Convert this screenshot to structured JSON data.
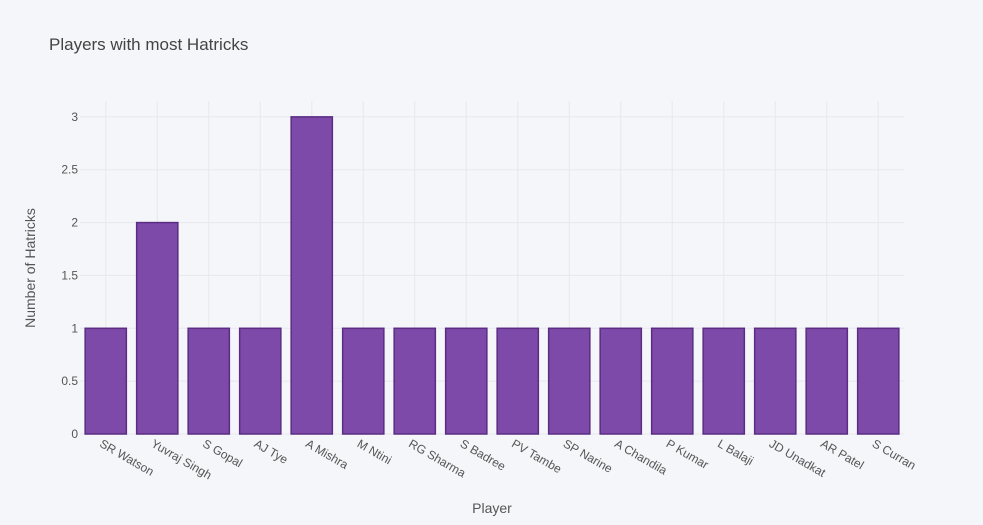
{
  "chart_data": {
    "type": "bar",
    "title": "Players with most Hatricks",
    "xlabel": "Player",
    "ylabel": "Number of Hatricks",
    "categories": [
      "SR Watson",
      "Yuvraj Singh",
      "S Gopal",
      "AJ Tye",
      "A Mishra",
      "M Ntini",
      "RG Sharma",
      "S Badree",
      "PV Tambe",
      "SP Narine",
      "A Chandila",
      "P Kumar",
      "L Balaji",
      "JD Unadkat",
      "AR Patel",
      "S Curran"
    ],
    "values": [
      1,
      2,
      1,
      1,
      3,
      1,
      1,
      1,
      1,
      1,
      1,
      1,
      1,
      1,
      1,
      1
    ],
    "ylim": [
      0,
      3.15
    ],
    "yticks": [
      "0",
      "0.5",
      "1",
      "1.5",
      "2",
      "2.5",
      "3"
    ],
    "grid": true,
    "legend": "none",
    "colors": {
      "bar_fill": "#7e4aa9",
      "bar_edge": "#5a2d82",
      "background": "#f5f6f9"
    }
  }
}
